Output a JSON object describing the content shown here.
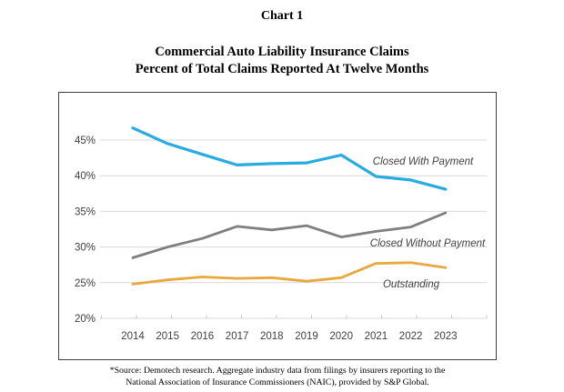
{
  "title": "Chart 1",
  "subtitle_line1": "Commercial Auto Liability Insurance Claims",
  "subtitle_line2": "Percent of Total Claims Reported At Twelve Months",
  "footnote_line1": "*Source: Demotech research. Aggregate industry data from filings by insurers reporting to the",
  "footnote_line2": "National Association of Insurance Commissioners (NAIC), provided by S&P Global.",
  "chart_data": {
    "type": "line",
    "x": [
      2014,
      2015,
      2016,
      2017,
      2018,
      2019,
      2020,
      2021,
      2022,
      2023
    ],
    "series": [
      {
        "name": "Closed With Payment",
        "color": "#29abe2",
        "stroke_width": 3.2,
        "values": [
          46.7,
          44.5,
          43.0,
          41.5,
          41.7,
          41.8,
          42.9,
          39.9,
          39.4,
          38.1
        ],
        "label_pos": {
          "x": 400,
          "y": 79
        }
      },
      {
        "name": "Closed Without Payment",
        "color": "#7f7f7f",
        "stroke_width": 2.8,
        "values": [
          28.5,
          30.0,
          31.2,
          32.9,
          32.4,
          33.0,
          31.4,
          32.2,
          32.8,
          34.8
        ],
        "label_pos": {
          "x": 405,
          "y": 169
        }
      },
      {
        "name": "Outstanding",
        "color": "#e9a83c",
        "stroke_width": 2.8,
        "values": [
          24.8,
          25.4,
          25.8,
          25.6,
          25.7,
          25.2,
          25.7,
          27.7,
          27.8,
          27.1
        ],
        "label_pos": {
          "x": 387,
          "y": 214
        }
      }
    ],
    "yticks": [
      20,
      25,
      30,
      35,
      40,
      45
    ],
    "ytick_suffix": "%",
    "ylim": [
      20,
      49.5
    ],
    "grid": true,
    "legend_position": "inline-labels"
  },
  "chart_colors": {
    "gridline": "#d9d9d9",
    "tick_mark": "#c6c6c6",
    "axis_text": "#404040",
    "series_label_text": "#404040",
    "frame_border": "#3f3f3f"
  }
}
